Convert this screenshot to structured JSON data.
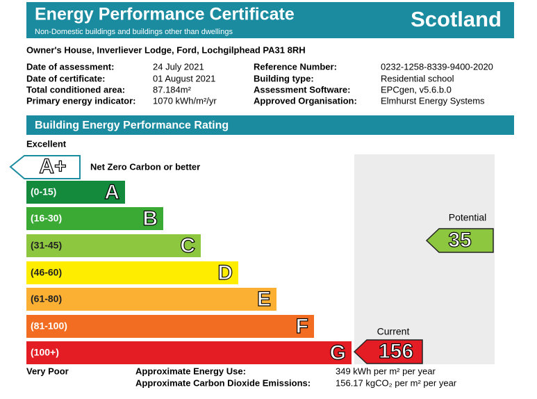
{
  "header": {
    "title": "Energy Performance Certificate",
    "subtitle": "Non-Domestic buildings and buildings other than dwellings",
    "region": "Scotland"
  },
  "address": "Owner's House, Inverliever Lodge, Ford, Lochgilphead PA31 8RH",
  "details": {
    "left": [
      {
        "label": "Date of assessment:",
        "value": "24 July 2021"
      },
      {
        "label": "Date of certificate:",
        "value": "01 August 2021"
      },
      {
        "label": "Total conditioned area:",
        "value": "87.184m²"
      },
      {
        "label": "Primary energy indicator:",
        "value": "1070 kWh/m²/yr"
      }
    ],
    "right": [
      {
        "label": "Reference Number:",
        "value": "0232-1258-8339-9400-2020"
      },
      {
        "label": "Building type:",
        "value": "Residential school"
      },
      {
        "label": "Assessment Software:",
        "value": "EPCgen, v5.6.b.0"
      },
      {
        "label": "Approved Organisation:",
        "value": "Elmhurst Energy Systems"
      }
    ]
  },
  "rating": {
    "title": "Building Energy Performance Rating",
    "top_label": "Excellent",
    "bottom_label": "Very Poor",
    "aplus": {
      "letter": "A+",
      "text": "Net Zero Carbon or better"
    },
    "bands": [
      {
        "range": "(0-15)",
        "letter": "A"
      },
      {
        "range": "(16-30)",
        "letter": "B"
      },
      {
        "range": "(31-45)",
        "letter": "C"
      },
      {
        "range": "(46-60)",
        "letter": "D"
      },
      {
        "range": "(61-80)",
        "letter": "E"
      },
      {
        "range": "(81-100)",
        "letter": "F"
      },
      {
        "range": "(100+)",
        "letter": "G"
      }
    ],
    "potential": {
      "label": "Potential",
      "value": 35
    },
    "current": {
      "label": "Current",
      "value": 156
    }
  },
  "footer": [
    {
      "label": "Approximate Energy Use:",
      "value": "349 kWh per m² per year"
    },
    {
      "label": "Approximate Carbon Dioxide Emissions:",
      "value": "156.17 kgCO₂ per m² per year"
    }
  ]
}
